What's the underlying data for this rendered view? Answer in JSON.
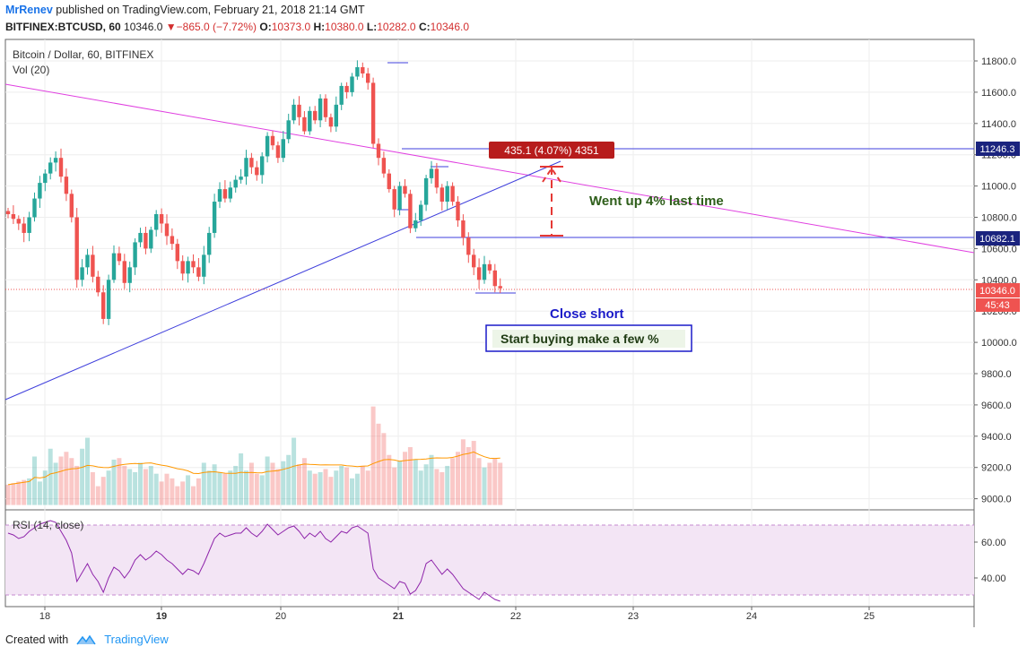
{
  "header": {
    "author": "MrRenev",
    "published_text": "published on TradingView.com, February 21, 2018 21:14 GMT",
    "symbol": "BITFINEX:BTCUSD, 60",
    "last_price": "10346.0",
    "change": "−865.0 (−7.72%)",
    "o_label": "O:",
    "o_value": "10373.0",
    "h_label": "H:",
    "h_value": "10380.0",
    "l_label": "L:",
    "l_value": "10282.0",
    "c_label": "C:",
    "c_value": "10346.0"
  },
  "legend": {
    "title": "Bitcoin / Dollar, 60, BITFINEX",
    "vol": "Vol (20)",
    "rsi": "RSI (14, close)"
  },
  "footer": {
    "created_with": "Created with",
    "brand": "TradingView"
  },
  "colors": {
    "up": "#26a69a",
    "down": "#ef5350",
    "trend_magenta": "#e040e0",
    "trend_blue": "#3f3fdc",
    "rsi_line": "#8e24aa",
    "rsi_band": "#f3e5f5"
  },
  "chart_data": {
    "type": "candlestick",
    "title": "Bitcoin / Dollar, 60, BITFINEX",
    "price_axis": {
      "ticks": [
        "11800.0",
        "11600.0",
        "11400.0",
        "11200.0",
        "11000.0",
        "10800.0",
        "10600.0",
        "10400.0",
        "10200.0",
        "10000.0",
        "9800.0",
        "9600.0",
        "9400.0",
        "9200.0",
        "9000.0"
      ]
    },
    "rsi_axis": {
      "ticks": [
        "60.00",
        "40.00"
      ]
    },
    "x_axis": {
      "ticks": [
        "18",
        "19",
        "20",
        "21",
        "22",
        "23",
        "24",
        "25"
      ]
    },
    "price_labels": {
      "level_high": "11246.3",
      "level_low": "10682.1",
      "last": "10346.0",
      "countdown": "45:43"
    },
    "measure_label": "435.1 (4.07%) 4351",
    "annotations": {
      "went_up": "Went up 4% last time",
      "close_short": "Close short",
      "start_buying": "Start buying make a few %"
    },
    "closes": [
      10820,
      10790,
      10760,
      10700,
      10800,
      10920,
      11020,
      11080,
      11150,
      11180,
      11060,
      10950,
      10800,
      10400,
      10480,
      10560,
      10420,
      10320,
      10150,
      10400,
      10570,
      10520,
      10380,
      10480,
      10640,
      10700,
      10600,
      10720,
      10820,
      10760,
      10680,
      10630,
      10520,
      10440,
      10520,
      10480,
      10420,
      10560,
      10700,
      10900,
      10980,
      10920,
      10990,
      11040,
      11060,
      11180,
      11120,
      11070,
      11190,
      11320,
      11260,
      11180,
      11300,
      11420,
      11520,
      11440,
      11350,
      11480,
      11420,
      11560,
      11440,
      11380,
      11520,
      11640,
      11600,
      11700,
      11760,
      11720,
      11660,
      11270,
      11180,
      11080,
      10980,
      10850,
      11000,
      10950,
      10730,
      10780,
      10880,
      11050,
      11110,
      10990,
      10900,
      11000,
      10900,
      10780,
      10670,
      10560,
      10480,
      10400,
      10500,
      10460,
      10360,
      10346
    ],
    "volumes": [
      9090,
      9100,
      9110,
      9120,
      9130,
      9270,
      9110,
      9180,
      9320,
      9230,
      9270,
      9300,
      9260,
      9210,
      9320,
      9390,
      9170,
      9080,
      9140,
      9180,
      9250,
      9260,
      9210,
      9190,
      9170,
      9230,
      9190,
      9210,
      9160,
      9110,
      9160,
      9130,
      9080,
      9110,
      9150,
      9080,
      9130,
      9230,
      9180,
      9220,
      9170,
      9160,
      9180,
      9210,
      9290,
      9180,
      9230,
      9160,
      9150,
      9270,
      9230,
      9190,
      9240,
      9280,
      9390,
      9220,
      9260,
      9180,
      9160,
      9170,
      9190,
      9140,
      9180,
      9210,
      9200,
      9130,
      9160,
      9210,
      9180,
      9590,
      9480,
      9420,
      9280,
      9200,
      9240,
      9300,
      9330,
      9250,
      9180,
      9220,
      9280,
      9190,
      9170,
      9210,
      9260,
      9300,
      9380,
      9330,
      9370,
      9260,
      9200,
      9230,
      9260,
      9230
    ],
    "rsi": [
      65,
      64,
      62,
      63,
      66,
      68,
      70,
      71,
      72,
      71,
      66,
      61,
      54,
      38,
      43,
      48,
      42,
      38,
      32,
      40,
      46,
      44,
      40,
      44,
      50,
      53,
      50,
      52,
      55,
      53,
      50,
      48,
      45,
      42,
      45,
      44,
      42,
      48,
      55,
      62,
      65,
      63,
      64,
      65,
      65,
      68,
      65,
      63,
      66,
      70,
      67,
      64,
      66,
      68,
      69,
      66,
      62,
      65,
      63,
      66,
      62,
      60,
      63,
      66,
      65,
      68,
      69,
      67,
      65,
      45,
      40,
      38,
      36,
      34,
      38,
      37,
      31,
      33,
      38,
      48,
      50,
      46,
      42,
      45,
      42,
      38,
      34,
      32,
      30,
      28,
      32,
      30,
      28,
      27
    ]
  }
}
